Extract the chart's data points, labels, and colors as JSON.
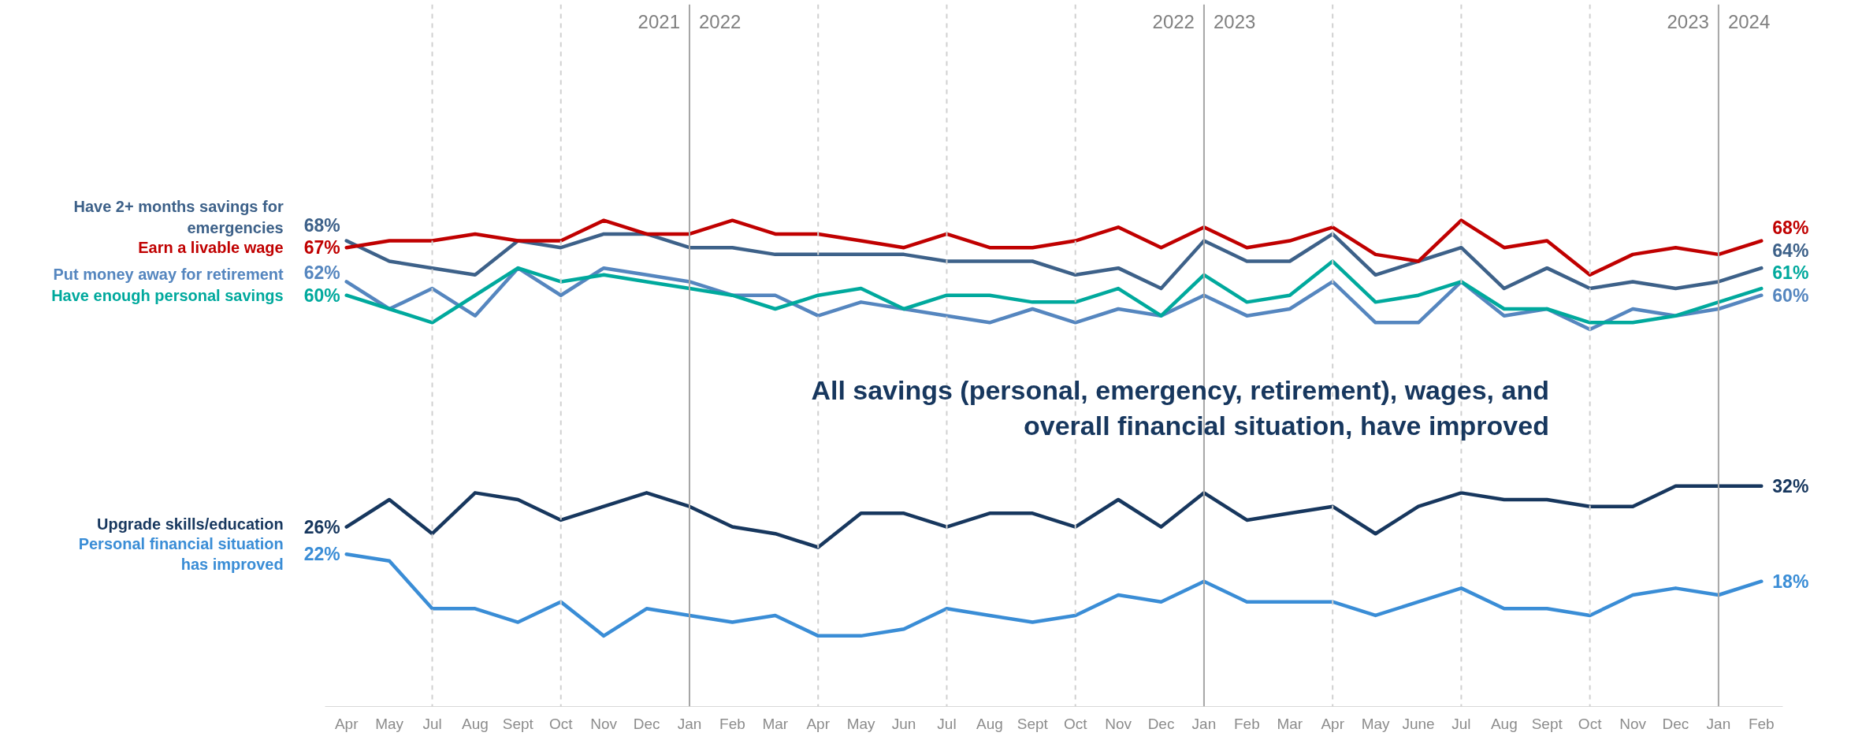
{
  "chart_data": {
    "type": "line",
    "title": "All savings (personal, emergency, retirement), wages, and overall financial situation, have improved",
    "categories": [
      "Apr",
      "May",
      "Jul",
      "Aug",
      "Sept",
      "Oct",
      "Nov",
      "Dec",
      "Jan",
      "Feb",
      "Mar",
      "Apr",
      "May",
      "Jun",
      "Jul",
      "Aug",
      "Sept",
      "Oct",
      "Nov",
      "Dec",
      "Jan",
      "Feb",
      "Mar",
      "Apr",
      "May",
      "June",
      "Jul",
      "Aug",
      "Sept",
      "Oct",
      "Nov",
      "Dec",
      "Jan",
      "Feb"
    ],
    "series": [
      {
        "name": "Have 2+ months savings for emergencies",
        "color": "#3d6189",
        "values": [
          68,
          65,
          64,
          63,
          68,
          67,
          69,
          69,
          67,
          67,
          66,
          66,
          66,
          66,
          65,
          65,
          65,
          63,
          64,
          61,
          68,
          65,
          65,
          69,
          63,
          65,
          67,
          61,
          64,
          61,
          62,
          61,
          62,
          64
        ],
        "value_labels": [
          "68%",
          null,
          null,
          null,
          null,
          null,
          null,
          null,
          null,
          null,
          null,
          null,
          null,
          null,
          null,
          null,
          null,
          null,
          null,
          null,
          null,
          null,
          null,
          null,
          null,
          null,
          null,
          null,
          null,
          null,
          null,
          null,
          null,
          "64%"
        ]
      },
      {
        "name": "Earn a livable wage",
        "color": "#c00000",
        "values": [
          67,
          68,
          68,
          69,
          68,
          68,
          71,
          69,
          69,
          71,
          69,
          69,
          68,
          67,
          69,
          67,
          67,
          68,
          70,
          67,
          70,
          67,
          68,
          70,
          66,
          65,
          71,
          67,
          68,
          63,
          66,
          67,
          66,
          68
        ],
        "value_labels": [
          "67%",
          null,
          null,
          null,
          null,
          null,
          null,
          null,
          null,
          null,
          null,
          null,
          null,
          null,
          null,
          null,
          null,
          null,
          null,
          null,
          null,
          null,
          null,
          null,
          null,
          null,
          null,
          null,
          null,
          null,
          null,
          null,
          null,
          "68%"
        ]
      },
      {
        "name": "Put money away for retirement",
        "color": "#5586bf",
        "values": [
          62,
          58,
          61,
          57,
          64,
          60,
          64,
          63,
          62,
          60,
          60,
          57,
          59,
          58,
          57,
          56,
          58,
          56,
          58,
          57,
          60,
          57,
          58,
          62,
          56,
          56,
          62,
          57,
          58,
          55,
          58,
          57,
          58,
          60
        ],
        "value_labels": [
          "62%",
          null,
          null,
          null,
          null,
          null,
          null,
          null,
          null,
          null,
          null,
          null,
          null,
          null,
          null,
          null,
          null,
          null,
          null,
          null,
          null,
          null,
          null,
          null,
          null,
          null,
          null,
          null,
          null,
          null,
          null,
          null,
          null,
          "60%"
        ]
      },
      {
        "name": "Have enough personal savings",
        "color": "#00a99d",
        "values": [
          60,
          58,
          56,
          60,
          64,
          62,
          63,
          62,
          61,
          60,
          58,
          60,
          61,
          58,
          60,
          60,
          59,
          59,
          61,
          57,
          63,
          59,
          60,
          65,
          59,
          60,
          62,
          58,
          58,
          56,
          56,
          57,
          59,
          61
        ],
        "value_labels": [
          "60%",
          null,
          null,
          null,
          null,
          null,
          null,
          null,
          null,
          null,
          null,
          null,
          null,
          null,
          null,
          null,
          null,
          null,
          null,
          null,
          null,
          null,
          null,
          null,
          null,
          null,
          null,
          null,
          null,
          null,
          null,
          null,
          null,
          "61%"
        ]
      },
      {
        "name": "Upgrade skills/education",
        "color": "#17375e",
        "values": [
          26,
          30,
          25,
          31,
          30,
          27,
          29,
          31,
          29,
          26,
          25,
          23,
          28,
          28,
          26,
          28,
          28,
          26,
          30,
          26,
          31,
          27,
          28,
          29,
          25,
          29,
          31,
          30,
          30,
          29,
          29,
          32,
          32,
          32
        ],
        "value_labels": [
          "26%",
          null,
          null,
          null,
          null,
          null,
          null,
          null,
          null,
          null,
          null,
          null,
          null,
          null,
          null,
          null,
          null,
          null,
          null,
          null,
          null,
          null,
          null,
          null,
          null,
          null,
          null,
          null,
          null,
          null,
          null,
          null,
          null,
          "32%"
        ]
      },
      {
        "name": "Personal financial situation has improved",
        "color": "#3a8dd6",
        "values": [
          22,
          21,
          14,
          14,
          12,
          15,
          10,
          14,
          13,
          12,
          13,
          10,
          10,
          11,
          14,
          13,
          12,
          13,
          16,
          15,
          18,
          15,
          15,
          15,
          13,
          15,
          17,
          14,
          14,
          13,
          16,
          17,
          16,
          18
        ],
        "value_labels": [
          "22%",
          null,
          null,
          null,
          null,
          null,
          null,
          null,
          null,
          null,
          null,
          null,
          null,
          null,
          null,
          null,
          null,
          null,
          null,
          null,
          null,
          null,
          null,
          null,
          null,
          null,
          null,
          null,
          null,
          null,
          null,
          null,
          null,
          "18%"
        ]
      }
    ],
    "grid": "x",
    "annotations": [
      "2021",
      "2022",
      "2022",
      "2023",
      "2023",
      "2024"
    ]
  }
}
